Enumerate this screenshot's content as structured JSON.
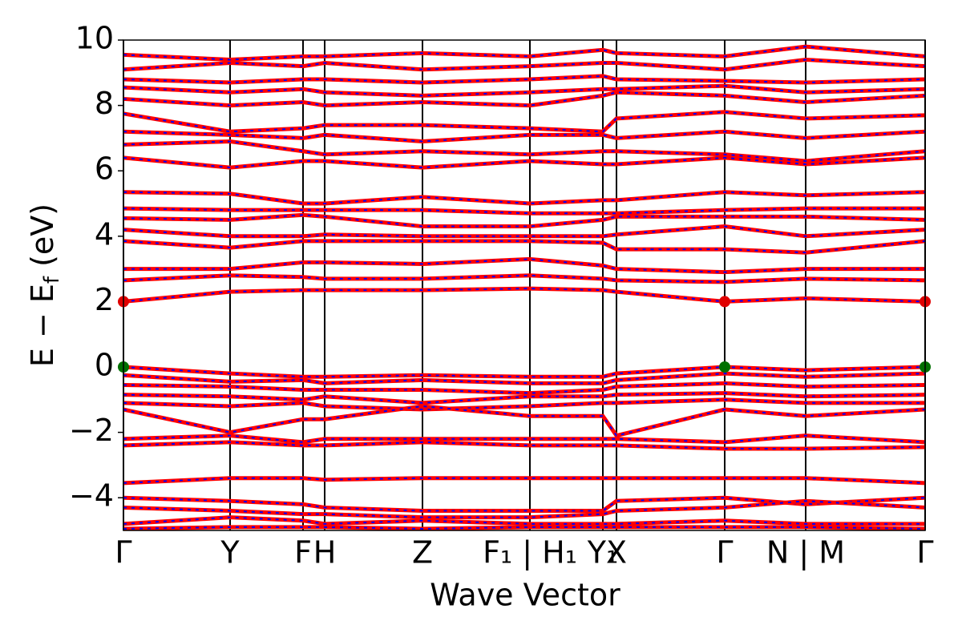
{
  "chart_data": {
    "type": "band-structure",
    "xlabel": "Wave Vector",
    "ylabel": {
      "main": "E − E",
      "sub": "f",
      "unit": "(eV)"
    },
    "x": [
      0,
      133,
      224,
      251,
      373,
      507,
      598,
      615,
      750,
      851,
      1000
    ],
    "xlim": [
      0,
      1000
    ],
    "xticks": [
      {
        "value": 0,
        "label": "Γ"
      },
      {
        "value": 133,
        "label": "Y"
      },
      {
        "value": 224,
        "label": "F"
      },
      {
        "value": 251,
        "label": "H"
      },
      {
        "value": 373,
        "label": "Z"
      },
      {
        "value": 507,
        "label": "F₁ | H₁"
      },
      {
        "value": 598,
        "label": "Y₁"
      },
      {
        "value": 615,
        "label": "X"
      },
      {
        "value": 750,
        "label": "Γ"
      },
      {
        "value": 851,
        "label": "N | M"
      },
      {
        "value": 1000,
        "label": "Γ"
      }
    ],
    "ylim": [
      -5,
      10
    ],
    "yticks": [
      {
        "value": -4,
        "label": "−4"
      },
      {
        "value": -2,
        "label": "−2"
      },
      0,
      2,
      4,
      6,
      8,
      10
    ],
    "color": "#ff0000",
    "dash_color": "#0000ff",
    "series": [
      {
        "values": [
          2.0,
          2.3,
          2.35,
          2.35,
          2.35,
          2.4,
          2.35,
          2.3,
          2.0,
          2.1,
          2.0
        ]
      },
      {
        "values": [
          2.65,
          2.8,
          2.75,
          2.7,
          2.7,
          2.8,
          2.7,
          2.65,
          2.6,
          2.7,
          2.65
        ]
      },
      {
        "values": [
          3.0,
          3.0,
          3.2,
          3.2,
          3.15,
          3.3,
          3.1,
          3.0,
          2.9,
          3.0,
          3.0
        ]
      },
      {
        "values": [
          3.85,
          3.65,
          3.85,
          3.85,
          3.85,
          3.85,
          3.8,
          3.6,
          3.6,
          3.5,
          3.85
        ]
      },
      {
        "values": [
          4.2,
          4.0,
          4.0,
          4.05,
          4.0,
          4.0,
          4.0,
          4.05,
          4.3,
          4.0,
          4.2
        ]
      },
      {
        "values": [
          4.55,
          4.5,
          4.65,
          4.6,
          4.3,
          4.3,
          4.5,
          4.6,
          4.6,
          4.6,
          4.5
        ]
      },
      {
        "values": [
          4.85,
          4.8,
          4.8,
          4.8,
          4.8,
          4.7,
          4.7,
          4.7,
          4.8,
          4.85,
          4.85
        ]
      },
      {
        "values": [
          5.35,
          5.3,
          5.0,
          5.0,
          5.2,
          5.0,
          5.1,
          5.1,
          5.35,
          5.25,
          5.35
        ]
      },
      {
        "values": [
          6.4,
          6.1,
          6.3,
          6.3,
          6.1,
          6.3,
          6.2,
          6.2,
          6.4,
          6.2,
          6.4
        ]
      },
      {
        "values": [
          6.8,
          6.9,
          6.6,
          6.5,
          6.6,
          6.5,
          6.6,
          6.6,
          6.5,
          6.3,
          6.6
        ]
      },
      {
        "values": [
          7.2,
          7.1,
          7.0,
          7.1,
          6.9,
          7.1,
          7.1,
          7.0,
          7.2,
          7.0,
          7.2
        ]
      },
      {
        "values": [
          7.75,
          7.2,
          7.3,
          7.4,
          7.4,
          7.3,
          7.2,
          7.6,
          7.8,
          7.6,
          7.7
        ]
      },
      {
        "values": [
          8.2,
          8.0,
          8.1,
          8.0,
          8.1,
          8.0,
          8.3,
          8.4,
          8.3,
          8.1,
          8.3
        ]
      },
      {
        "values": [
          8.55,
          8.4,
          8.5,
          8.4,
          8.3,
          8.4,
          8.5,
          8.5,
          8.6,
          8.4,
          8.5
        ]
      },
      {
        "values": [
          8.8,
          8.7,
          8.8,
          8.8,
          8.7,
          8.8,
          8.9,
          8.8,
          8.75,
          8.7,
          8.8
        ]
      },
      {
        "values": [
          9.1,
          9.3,
          9.2,
          9.3,
          9.1,
          9.2,
          9.3,
          9.3,
          9.1,
          9.4,
          9.2
        ]
      },
      {
        "values": [
          9.55,
          9.4,
          9.5,
          9.5,
          9.6,
          9.5,
          9.7,
          9.6,
          9.5,
          9.8,
          9.5
        ]
      },
      {
        "values": [
          0.0,
          -0.2,
          -0.3,
          -0.3,
          -0.25,
          -0.3,
          -0.3,
          -0.2,
          0.0,
          -0.1,
          0.0
        ]
      },
      {
        "values": [
          -0.25,
          -0.45,
          -0.4,
          -0.5,
          -0.4,
          -0.5,
          -0.5,
          -0.4,
          -0.2,
          -0.3,
          -0.2
        ]
      },
      {
        "values": [
          -0.55,
          -0.6,
          -0.7,
          -0.7,
          -0.7,
          -0.8,
          -0.7,
          -0.6,
          -0.5,
          -0.6,
          -0.55
        ]
      },
      {
        "values": [
          -0.85,
          -0.9,
          -1.0,
          -0.9,
          -1.1,
          -0.9,
          -0.9,
          -0.85,
          -0.8,
          -0.9,
          -0.85
        ]
      },
      {
        "values": [
          -1.1,
          -1.2,
          -1.1,
          -1.2,
          -1.3,
          -1.2,
          -1.1,
          -1.1,
          -1.0,
          -1.1,
          -1.1
        ]
      },
      {
        "values": [
          -1.3,
          -2.0,
          -1.6,
          -1.6,
          -1.2,
          -1.5,
          -1.5,
          -2.1,
          -1.3,
          -1.5,
          -1.3
        ]
      },
      {
        "values": [
          -2.2,
          -2.1,
          -2.3,
          -2.2,
          -2.2,
          -2.2,
          -2.2,
          -2.2,
          -2.3,
          -2.1,
          -2.3
        ]
      },
      {
        "values": [
          -2.4,
          -2.3,
          -2.4,
          -2.4,
          -2.3,
          -2.4,
          -2.4,
          -2.4,
          -2.5,
          -2.5,
          -2.45
        ]
      },
      {
        "values": [
          -3.55,
          -3.4,
          -3.4,
          -3.45,
          -3.4,
          -3.4,
          -3.4,
          -3.4,
          -3.4,
          -3.4,
          -3.55
        ]
      },
      {
        "values": [
          -4.0,
          -4.1,
          -4.2,
          -4.3,
          -4.4,
          -4.4,
          -4.4,
          -4.1,
          -4.0,
          -4.2,
          -4.0
        ]
      },
      {
        "values": [
          -4.3,
          -4.4,
          -4.5,
          -4.5,
          -4.6,
          -4.6,
          -4.5,
          -4.4,
          -4.3,
          -4.1,
          -4.3
        ]
      },
      {
        "values": [
          -4.8,
          -4.6,
          -4.7,
          -4.8,
          -4.7,
          -4.8,
          -4.8,
          -4.8,
          -4.7,
          -4.8,
          -4.8
        ]
      },
      {
        "values": [
          -4.95,
          -4.9,
          -4.9,
          -4.9,
          -4.95,
          -4.9,
          -4.9,
          -4.9,
          -4.9,
          -4.9,
          -4.95
        ]
      }
    ],
    "cbm": {
      "x": [
        0,
        750,
        1000
      ],
      "values": [
        2.0,
        2.0,
        2.0
      ],
      "color": "#e00000"
    },
    "vbm": {
      "x": [
        0,
        750,
        1000
      ],
      "values": [
        0.0,
        0.0,
        0.0
      ],
      "color": "#007000"
    }
  }
}
